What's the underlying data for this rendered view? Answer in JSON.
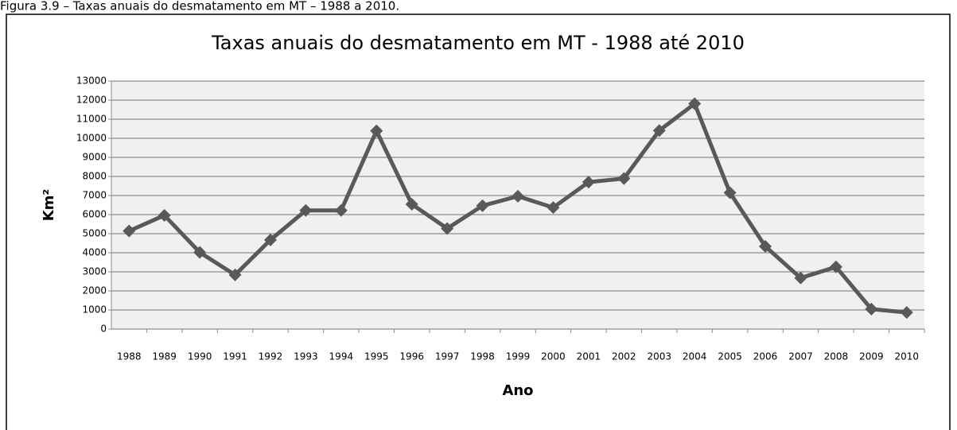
{
  "caption": "Figura 3.9 – Taxas anuais do desmatamento em MT – 1988 a 2010.",
  "chart_data": {
    "type": "line",
    "title": "Taxas anuais do desmatamento em MT - 1988 até 2010",
    "x_label": "Ano",
    "y_label": "Km²",
    "categories": [
      "1988",
      "1989",
      "1990",
      "1991",
      "1992",
      "1993",
      "1994",
      "1995",
      "1996",
      "1997",
      "1998",
      "1999",
      "2000",
      "2001",
      "2002",
      "2003",
      "2004",
      "2005",
      "2006",
      "2007",
      "2008",
      "2009",
      "2010"
    ],
    "series": [
      {
        "name": "Km²",
        "color": "#595959",
        "values": [
          5140,
          5960,
          4020,
          2840,
          4674,
          6220,
          6220,
          10391,
          6543,
          5271,
          6466,
          6963,
          6369,
          7703,
          7892,
          10405,
          11814,
          7145,
          4333,
          2678,
          3258,
          1049,
          871
        ]
      }
    ],
    "ylim": [
      0,
      13000
    ],
    "yticks": [
      0,
      1000,
      2000,
      3000,
      4000,
      5000,
      6000,
      7000,
      8000,
      9000,
      10000,
      11000,
      12000,
      13000
    ],
    "grid": true,
    "legend": false
  }
}
